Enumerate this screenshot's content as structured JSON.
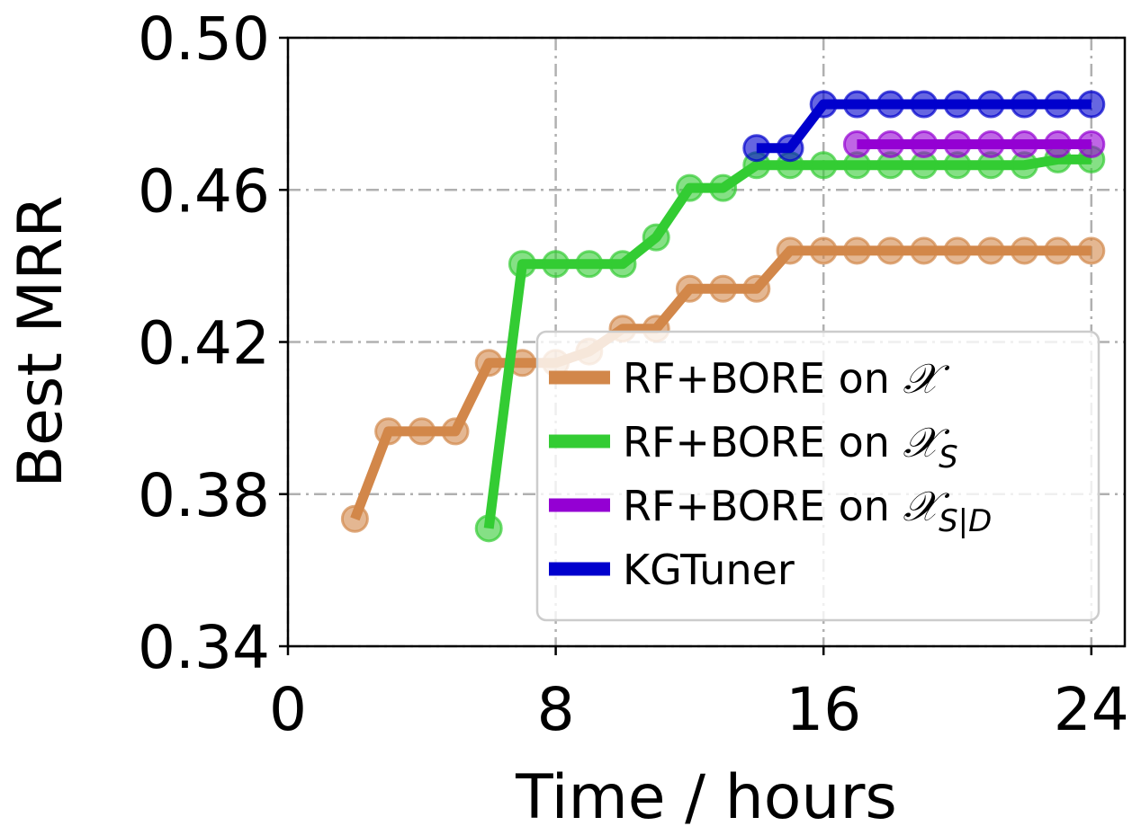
{
  "chart_data": {
    "type": "line",
    "xlabel": "Time / hours",
    "ylabel": "Best MRR",
    "xlim": [
      0,
      25
    ],
    "ylim": [
      0.34,
      0.5
    ],
    "xticks": [
      0,
      8,
      16,
      24
    ],
    "xtick_labels": [
      "0",
      "8",
      "16",
      "24"
    ],
    "yticks": [
      0.34,
      0.38,
      0.42,
      0.46,
      0.5
    ],
    "ytick_labels": [
      "0.34",
      "0.38",
      "0.42",
      "0.46",
      "0.50"
    ],
    "grid": true,
    "legend_position": "lower-right",
    "series": [
      {
        "name": "RF+BORE on 𝒳",
        "legend_base": "RF+BORE on ",
        "legend_math": "𝒳",
        "legend_sub": "",
        "color": "#D2874A",
        "x": [
          2,
          3,
          4,
          5,
          6,
          7,
          8,
          9,
          10,
          11,
          12,
          13,
          14,
          15,
          16,
          17,
          18,
          19,
          20,
          21,
          22,
          23,
          24
        ],
        "y": [
          0.3735,
          0.3965,
          0.3965,
          0.3965,
          0.4145,
          0.4145,
          0.4145,
          0.4175,
          0.4235,
          0.4235,
          0.434,
          0.434,
          0.434,
          0.444,
          0.444,
          0.444,
          0.444,
          0.444,
          0.444,
          0.444,
          0.444,
          0.444,
          0.444
        ]
      },
      {
        "name": "RF+BORE on 𝒳S",
        "legend_base": "RF+BORE on ",
        "legend_math": "𝒳",
        "legend_sub": "S",
        "color": "#33CC33",
        "x": [
          6,
          7,
          8,
          9,
          10,
          11,
          12,
          13,
          14,
          15,
          16,
          17,
          18,
          19,
          20,
          21,
          22,
          23,
          24
        ],
        "y": [
          0.371,
          0.4405,
          0.4405,
          0.4405,
          0.4405,
          0.4475,
          0.4605,
          0.4605,
          0.4665,
          0.4665,
          0.4665,
          0.4665,
          0.4665,
          0.4665,
          0.4665,
          0.4665,
          0.4665,
          0.468,
          0.468
        ]
      },
      {
        "name": "RF+BORE on 𝒳S|D",
        "legend_base": "RF+BORE on ",
        "legend_math": "𝒳",
        "legend_sub": "S|D",
        "color": "#9400D3",
        "x": [
          17,
          18,
          19,
          20,
          21,
          22,
          23,
          24
        ],
        "y": [
          0.472,
          0.472,
          0.472,
          0.472,
          0.472,
          0.472,
          0.472,
          0.472
        ]
      },
      {
        "name": "KGTuner",
        "legend_base": "KGTuner",
        "legend_math": "",
        "legend_sub": "",
        "color": "#0000CD",
        "x": [
          14,
          15,
          16,
          17,
          18,
          19,
          20,
          21,
          22,
          23,
          24
        ],
        "y": [
          0.471,
          0.471,
          0.4825,
          0.4825,
          0.4825,
          0.4825,
          0.4825,
          0.4825,
          0.4825,
          0.4825,
          0.4825
        ]
      }
    ]
  }
}
